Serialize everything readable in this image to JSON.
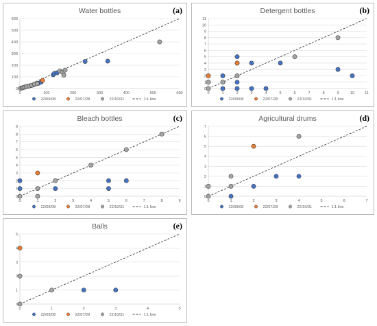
{
  "colors": {
    "22/09/08": "#4472c4",
    "22/07/28": "#ed7d31",
    "22/10/31": "#a5a5a5",
    "grid": "#d9d9d9",
    "axis": "#bfbfbf",
    "line": "#404040"
  },
  "chart_data": [
    {
      "id": "a",
      "type": "scatter",
      "label": "(a)",
      "title": "Water bottles",
      "xlim": [
        0,
        600
      ],
      "ylim": [
        0,
        600
      ],
      "xticks": [
        0,
        100,
        200,
        300,
        400,
        500,
        600
      ],
      "yticks": [
        0,
        100,
        200,
        300,
        400,
        500,
        600
      ],
      "legend": [
        "22/09/08",
        "22/07/28",
        "22/10/31",
        "1:1 line"
      ],
      "reference_line": "1:1 line",
      "series": [
        {
          "name": "22/09/08",
          "points": [
            [
              5,
              3
            ],
            [
              10,
              6
            ],
            [
              15,
              10
            ],
            [
              20,
              14
            ],
            [
              30,
              20
            ],
            [
              40,
              25
            ],
            [
              50,
              30
            ],
            [
              60,
              40
            ],
            [
              70,
              45
            ],
            [
              80,
              55
            ],
            [
              125,
              118
            ],
            [
              130,
              130
            ],
            [
              140,
              135
            ],
            [
              245,
              232
            ],
            [
              330,
              235
            ]
          ]
        },
        {
          "name": "22/07/28",
          "points": [
            [
              85,
              70
            ]
          ]
        },
        {
          "name": "22/10/31",
          "points": [
            [
              2,
              2
            ],
            [
              8,
              5
            ],
            [
              12,
              8
            ],
            [
              18,
              12
            ],
            [
              25,
              18
            ],
            [
              35,
              22
            ],
            [
              45,
              28
            ],
            [
              55,
              38
            ],
            [
              65,
              42
            ],
            [
              150,
              150
            ],
            [
              160,
              140
            ],
            [
              170,
              158
            ],
            [
              165,
              115
            ],
            [
              525,
              400
            ]
          ]
        }
      ]
    },
    {
      "id": "b",
      "type": "scatter",
      "label": "(b)",
      "title": "Detergent bottles",
      "xlim": [
        0,
        11
      ],
      "ylim": [
        0,
        11
      ],
      "xticks": [
        0,
        1,
        2,
        3,
        4,
        5,
        6,
        7,
        8,
        9,
        10,
        11
      ],
      "yticks": [
        0,
        1,
        2,
        3,
        4,
        5,
        6,
        7,
        8,
        9,
        10,
        11
      ],
      "legend": [
        "22/09/08",
        "22/07/28",
        "22/10/31",
        "1:1 line"
      ],
      "reference_line": "1:1 line",
      "series": [
        {
          "name": "22/09/08",
          "points": [
            [
              0,
              1
            ],
            [
              1,
              0
            ],
            [
              1,
              1
            ],
            [
              1,
              2
            ],
            [
              2,
              0
            ],
            [
              2,
              1
            ],
            [
              2,
              4
            ],
            [
              2,
              5
            ],
            [
              3,
              0
            ],
            [
              3,
              4
            ],
            [
              4,
              0
            ],
            [
              5,
              4
            ],
            [
              9,
              3
            ],
            [
              10,
              2
            ]
          ]
        },
        {
          "name": "22/07/28",
          "points": [
            [
              0,
              2
            ],
            [
              2,
              4
            ]
          ]
        },
        {
          "name": "22/10/31",
          "points": [
            [
              0,
              0
            ],
            [
              0,
              1
            ],
            [
              1,
              1
            ],
            [
              2,
              2
            ],
            [
              6,
              5
            ],
            [
              9,
              8
            ]
          ]
        }
      ]
    },
    {
      "id": "c",
      "type": "scatter",
      "label": "(c)",
      "title": "Bleach bottles",
      "xlim": [
        0,
        9
      ],
      "ylim": [
        0,
        9
      ],
      "xticks": [
        0,
        1,
        2,
        3,
        4,
        5,
        6,
        7,
        8,
        9
      ],
      "yticks": [
        0,
        1,
        2,
        3,
        4,
        5,
        6,
        7,
        8,
        9
      ],
      "legend": [
        "22/09/08",
        "22/07/28",
        "22/10/31",
        "1:1 line"
      ],
      "reference_line": "1:1 line",
      "series": [
        {
          "name": "22/09/08",
          "points": [
            [
              0,
              1
            ],
            [
              0,
              2
            ],
            [
              2,
              1
            ],
            [
              5,
              1
            ],
            [
              5,
              2
            ],
            [
              6,
              2
            ]
          ]
        },
        {
          "name": "22/07/28",
          "points": [
            [
              1,
              3
            ]
          ]
        },
        {
          "name": "22/10/31",
          "points": [
            [
              0,
              0
            ],
            [
              1,
              0
            ],
            [
              1,
              1
            ],
            [
              2,
              2
            ],
            [
              4,
              4
            ],
            [
              6,
              6
            ],
            [
              8,
              8
            ]
          ]
        }
      ]
    },
    {
      "id": "d",
      "type": "scatter",
      "label": "(d)",
      "title": "Agricultural drums",
      "xlim": [
        0,
        7
      ],
      "ylim": [
        0,
        7
      ],
      "xticks": [
        0,
        1,
        2,
        3,
        4,
        5,
        6,
        7
      ],
      "yticks": [
        0,
        1,
        2,
        3,
        4,
        5,
        6,
        7
      ],
      "legend": [
        "22/09/08",
        "22/07/28",
        "22/10/31",
        "1:1 line"
      ],
      "reference_line": "1:1 line",
      "series": [
        {
          "name": "22/09/08",
          "points": [
            [
              1,
              0
            ],
            [
              2,
              1
            ],
            [
              3,
              2
            ],
            [
              4,
              2
            ]
          ]
        },
        {
          "name": "22/07/28",
          "points": [
            [
              2,
              5
            ]
          ]
        },
        {
          "name": "22/10/31",
          "points": [
            [
              0,
              0
            ],
            [
              0,
              1
            ],
            [
              1,
              1
            ],
            [
              1,
              2
            ],
            [
              4,
              6
            ]
          ]
        }
      ]
    },
    {
      "id": "e",
      "type": "scatter",
      "label": "(e)",
      "title": "Balls",
      "xlim": [
        0,
        5
      ],
      "ylim": [
        0,
        5
      ],
      "xticks": [
        0,
        1,
        2,
        3,
        4,
        5
      ],
      "yticks": [
        0,
        1,
        2,
        3,
        4,
        5
      ],
      "legend": [
        "22/09/08",
        "22/07/28",
        "22/10/31",
        "1:1 line"
      ],
      "reference_line": "1:1 line",
      "series": [
        {
          "name": "22/09/08",
          "points": [
            [
              2,
              1
            ],
            [
              3,
              1
            ]
          ]
        },
        {
          "name": "22/07/28",
          "points": [
            [
              0,
              4
            ]
          ]
        },
        {
          "name": "22/10/31",
          "points": [
            [
              0,
              0
            ],
            [
              0,
              2
            ],
            [
              1,
              1
            ]
          ]
        }
      ]
    }
  ]
}
